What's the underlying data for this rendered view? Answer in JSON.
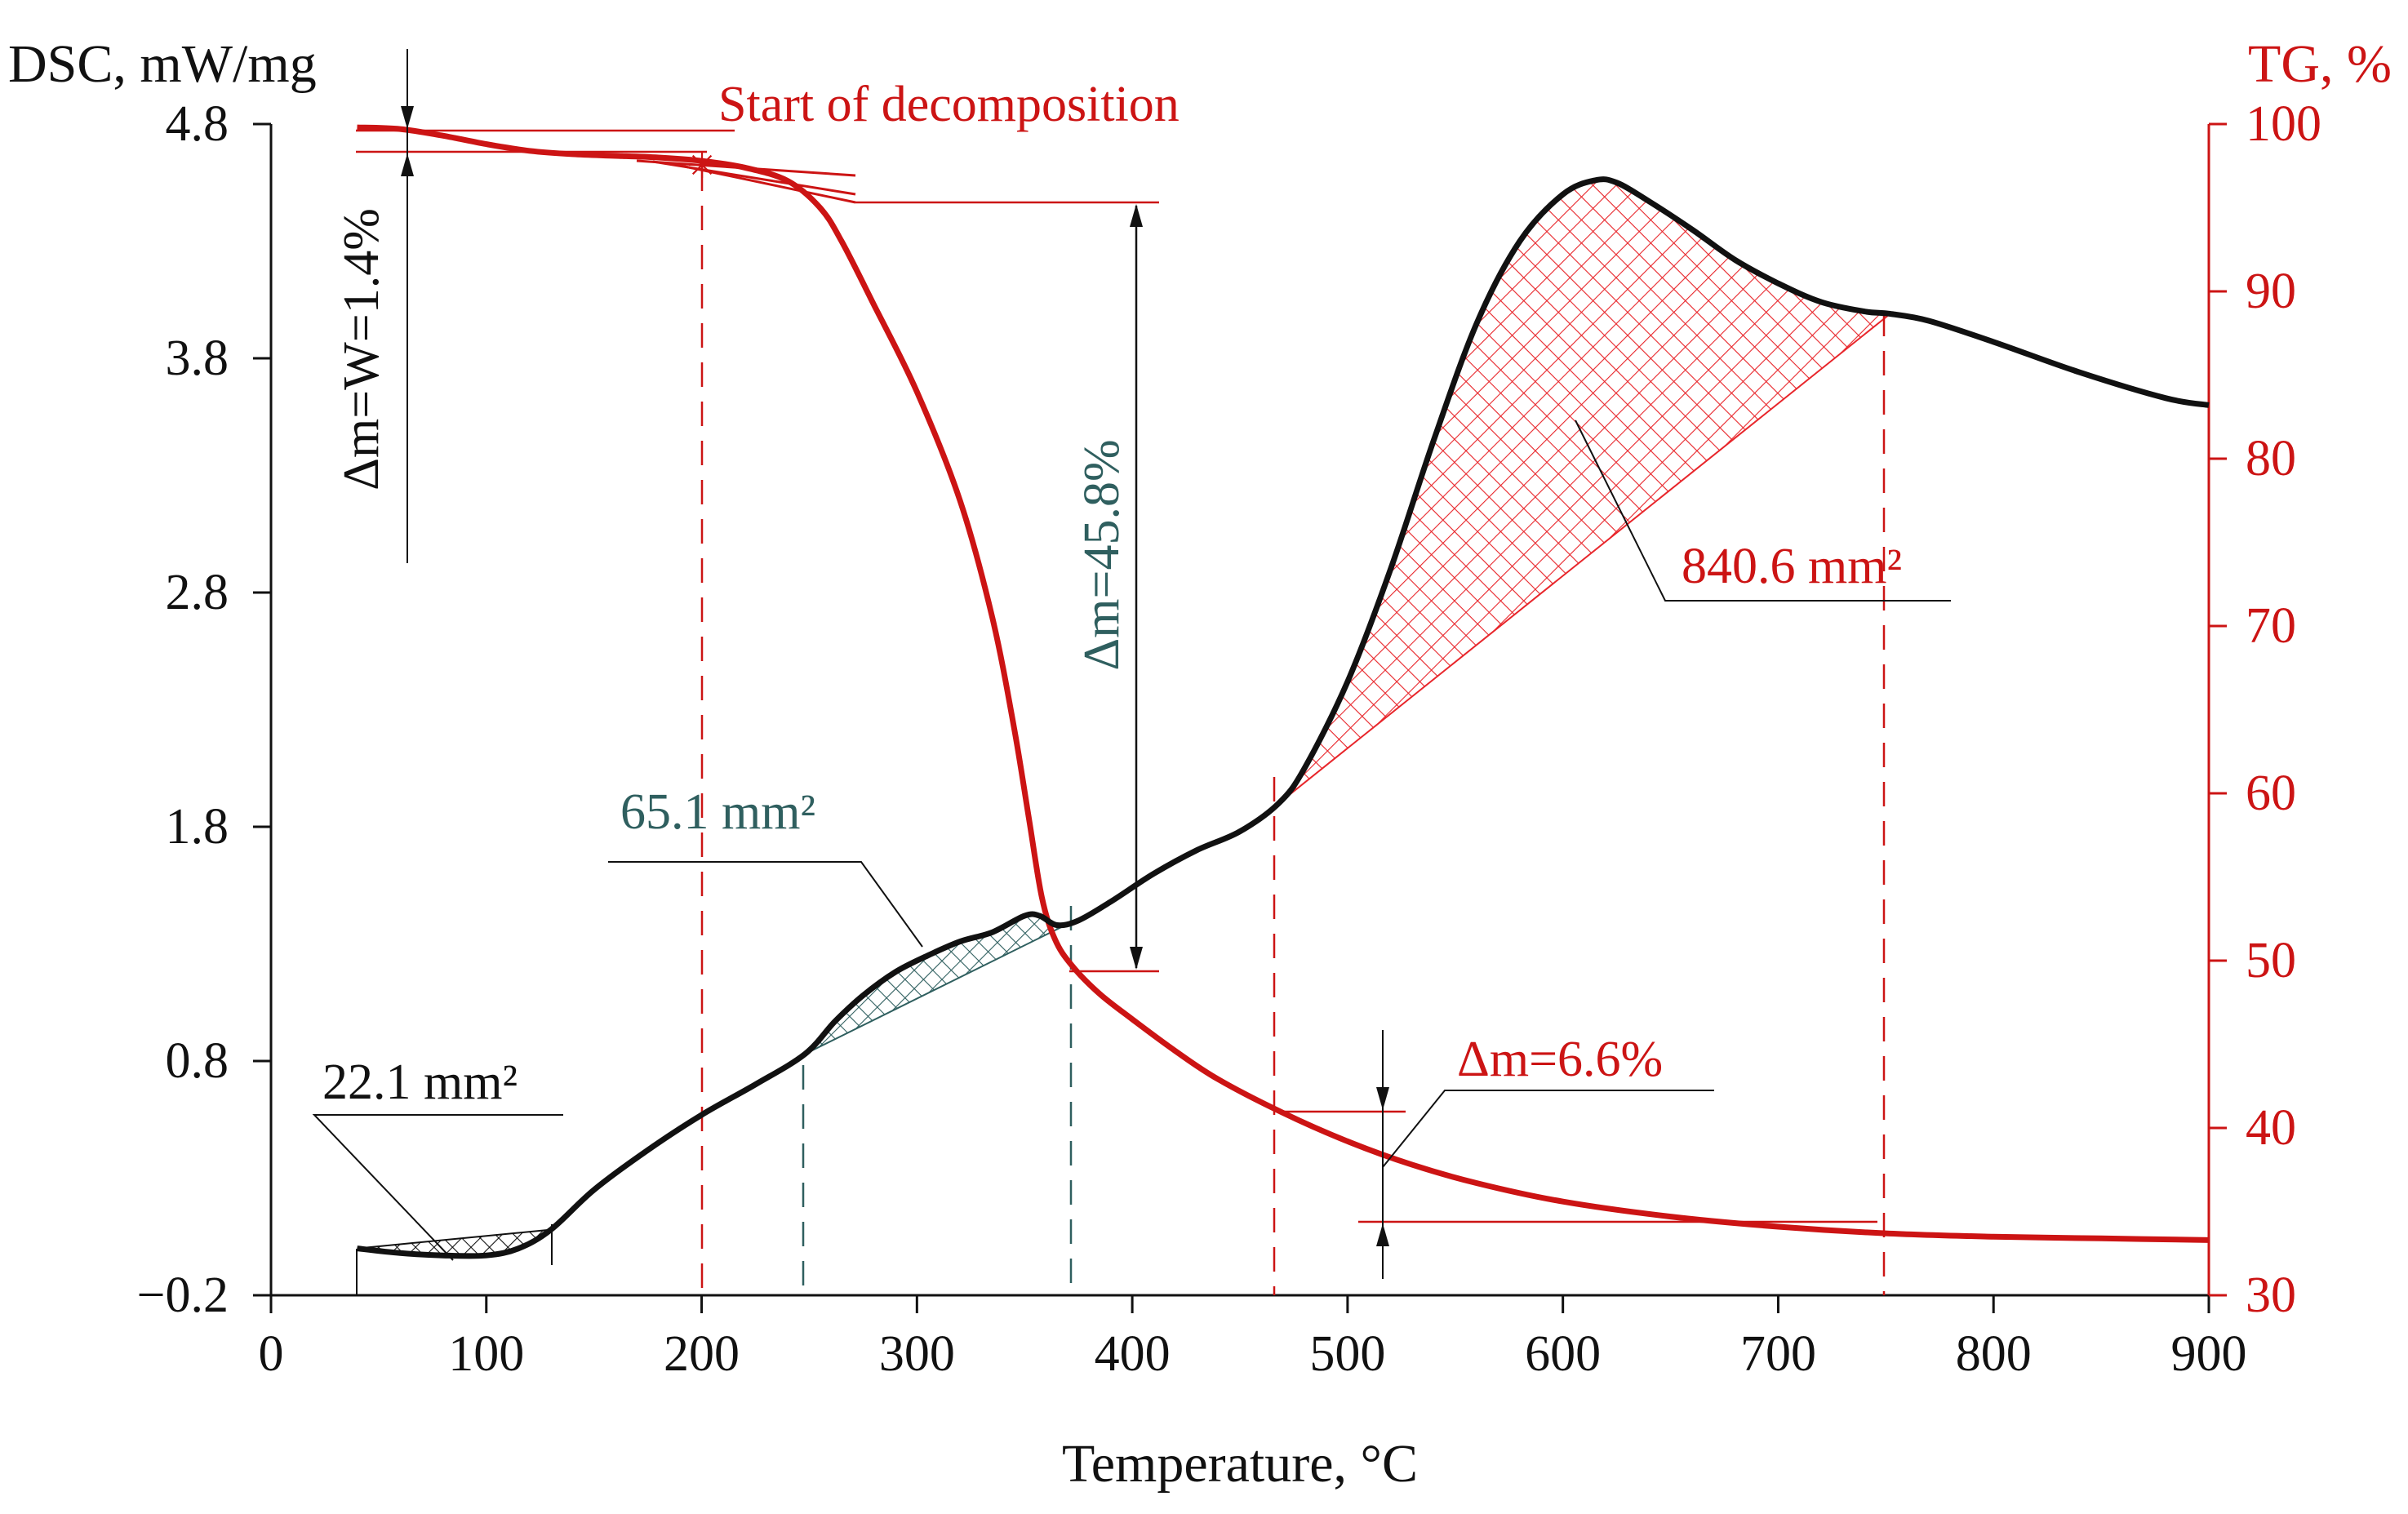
{
  "chart_data": {
    "type": "line",
    "title": "",
    "xlabel": "Temperature, °C",
    "ylabel_left": "DSC, mW/mg",
    "ylabel_right": "TG, %",
    "xlim": [
      0,
      900
    ],
    "ylim_left": [
      -0.2,
      4.8
    ],
    "ylim_right": [
      30,
      100
    ],
    "x_ticks": [
      0,
      100,
      200,
      300,
      400,
      500,
      600,
      700,
      800,
      900
    ],
    "y_left_ticks": [
      "-0.2",
      "0.8",
      "1.8",
      "2.8",
      "3.8",
      "4.8"
    ],
    "y_right_ticks": [
      30,
      40,
      50,
      60,
      70,
      80,
      90,
      100
    ],
    "grid": false,
    "colors": {
      "dsc": "#111111",
      "tg": "#cc1414",
      "teal": "#2f5f5f",
      "red_hatch": "#e8262b"
    },
    "series": [
      {
        "name": "DSC",
        "axis": "left",
        "color": "#111111",
        "x": [
          40,
          60,
          80,
          100,
          115,
          130,
          150,
          175,
          200,
          225,
          248,
          262,
          275,
          290,
          305,
          320,
          335,
          350,
          357,
          365,
          375,
          390,
          410,
          430,
          450,
          468,
          480,
          500,
          520,
          540,
          560,
          580,
          600,
          615,
          625,
          640,
          660,
          680,
          700,
          720,
          740,
          752,
          770,
          800,
          840,
          880,
          900
        ],
        "y": [
          0.0,
          -0.02,
          -0.03,
          -0.03,
          0.0,
          0.08,
          0.25,
          0.42,
          0.57,
          0.7,
          0.83,
          0.97,
          1.08,
          1.18,
          1.25,
          1.31,
          1.35,
          1.42,
          1.42,
          1.38,
          1.4,
          1.48,
          1.6,
          1.7,
          1.78,
          1.9,
          2.05,
          2.42,
          2.9,
          3.45,
          3.95,
          4.3,
          4.5,
          4.56,
          4.55,
          4.47,
          4.35,
          4.22,
          4.12,
          4.04,
          4.0,
          3.99,
          3.96,
          3.87,
          3.74,
          3.63,
          3.6
        ]
      },
      {
        "name": "TG",
        "axis": "right",
        "color": "#cc1414",
        "x": [
          40,
          60,
          80,
          100,
          120,
          140,
          160,
          180,
          200,
          220,
          240,
          255,
          265,
          280,
          300,
          320,
          335,
          345,
          352,
          358,
          364,
          372,
          385,
          400,
          420,
          440,
          470,
          500,
          530,
          560,
          600,
          650,
          700,
          750,
          800,
          850,
          900
        ],
        "y": [
          99.8,
          99.7,
          99.3,
          98.8,
          98.4,
          98.2,
          98.1,
          98.0,
          97.8,
          97.4,
          96.6,
          95.0,
          93.0,
          89.2,
          84.0,
          77.5,
          70.5,
          64.0,
          58.5,
          53.8,
          51.3,
          49.7,
          48.0,
          46.5,
          44.6,
          42.9,
          40.9,
          39.2,
          37.8,
          36.7,
          35.6,
          34.7,
          34.1,
          33.7,
          33.5,
          33.4,
          33.3
        ]
      }
    ],
    "shaded_areas": [
      {
        "label": "22.1 mm²",
        "x_range": [
          40,
          130
        ],
        "color": "#111111"
      },
      {
        "label": "65.1 mm²",
        "x_range": [
          248,
          372
        ],
        "color": "#2f5f5f"
      },
      {
        "label": "840.6 mm²",
        "x_range": [
          468,
          752
        ],
        "color": "#e8262b"
      }
    ],
    "annotations": [
      {
        "text": "Start of decomposition",
        "x": 200,
        "color": "#cc1414"
      },
      {
        "text": "Δm=W=1.4%",
        "color": "#111111"
      },
      {
        "text": "Δm=45.8%",
        "color": "#2f5f5f"
      },
      {
        "text": "Δm=6.6%",
        "color": "#cc1414"
      }
    ]
  }
}
